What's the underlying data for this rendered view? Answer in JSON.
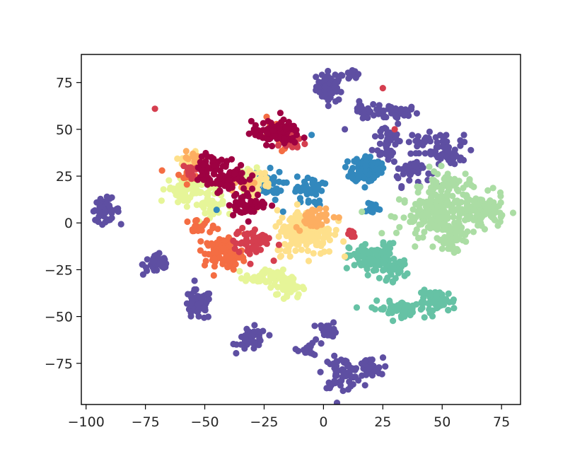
{
  "chart_data": {
    "type": "scatter",
    "title": "",
    "xlabel": "",
    "ylabel": "",
    "xlim": [
      -102,
      83
    ],
    "ylim": [
      -97,
      90
    ],
    "grid": false,
    "legend": "none",
    "x_ticks": [
      -100,
      -75,
      -50,
      -25,
      0,
      25,
      50,
      75
    ],
    "x_tick_labels": [
      "−100",
      "−75",
      "−50",
      "−25",
      "0",
      "25",
      "50",
      "75"
    ],
    "y_ticks": [
      75,
      50,
      25,
      0,
      -25,
      -50,
      -75
    ],
    "y_tick_labels": [
      "75",
      "50",
      "25",
      "0",
      "−25",
      "−50",
      "−75"
    ],
    "palette": [
      "#9e0142",
      "#d53e4f",
      "#f46d43",
      "#fdae61",
      "#fee08b",
      "#e6f598",
      "#abdda4",
      "#66c2a5",
      "#3288bd",
      "#5e4fa2"
    ],
    "clusters": [
      {
        "color": "#5e4fa2",
        "cx": 3,
        "cy": 73,
        "sx": 3,
        "sy": 4,
        "n": 60
      },
      {
        "color": "#5e4fa2",
        "cx": 12,
        "cy": 79,
        "sx": 1.5,
        "sy": 1.5,
        "n": 12
      },
      {
        "color": "#5e4fa2",
        "cx": 16,
        "cy": 60,
        "sx": 1.5,
        "sy": 2,
        "n": 10
      },
      {
        "color": "#5e4fa2",
        "cx": 28,
        "cy": 59,
        "sx": 6,
        "sy": 2,
        "n": 50
      },
      {
        "color": "#5e4fa2",
        "cx": 27,
        "cy": 44,
        "sx": 3,
        "sy": 6,
        "n": 40
      },
      {
        "color": "#5e4fa2",
        "cx": 37,
        "cy": 28,
        "sx": 4,
        "sy": 4,
        "n": 40
      },
      {
        "color": "#5e4fa2",
        "cx": 51,
        "cy": 40,
        "sx": 4,
        "sy": 4,
        "n": 45
      },
      {
        "color": "#5e4fa2",
        "cx": 42,
        "cy": 44,
        "sx": 3,
        "sy": 2,
        "n": 15
      },
      {
        "color": "#5e4fa2",
        "cx": 55,
        "cy": 34,
        "sx": 3,
        "sy": 2,
        "n": 10
      },
      {
        "color": "#5e4fa2",
        "cx": -92,
        "cy": 7,
        "sx": 3,
        "sy": 3,
        "n": 40
      },
      {
        "color": "#5e4fa2",
        "cx": -70,
        "cy": -22,
        "sx": 3,
        "sy": 3,
        "n": 40
      },
      {
        "color": "#5e4fa2",
        "cx": -53,
        "cy": -44,
        "sx": 3,
        "sy": 4,
        "n": 55
      },
      {
        "color": "#5e4fa2",
        "cx": -30,
        "cy": -62,
        "sx": 3,
        "sy": 3,
        "n": 45
      },
      {
        "color": "#5e4fa2",
        "cx": 2,
        "cy": -57,
        "sx": 2,
        "sy": 2,
        "n": 20
      },
      {
        "color": "#5e4fa2",
        "cx": -5,
        "cy": -67,
        "sx": 3,
        "sy": 2,
        "n": 15
      },
      {
        "color": "#5e4fa2",
        "cx": 8,
        "cy": -80,
        "sx": 4,
        "sy": 4,
        "n": 65
      },
      {
        "color": "#5e4fa2",
        "cx": 19,
        "cy": -78,
        "sx": 3,
        "sy": 3,
        "n": 35
      },
      {
        "color": "#3288bd",
        "cx": 18,
        "cy": 29,
        "sx": 3,
        "sy": 3.5,
        "n": 130
      },
      {
        "color": "#3288bd",
        "cx": 20,
        "cy": 8,
        "sx": 2,
        "sy": 2,
        "n": 12
      },
      {
        "color": "#3288bd",
        "cx": -25,
        "cy": 20,
        "sx": 4,
        "sy": 4,
        "n": 40
      },
      {
        "color": "#3288bd",
        "cx": -6,
        "cy": 17,
        "sx": 3,
        "sy": 4,
        "n": 40
      },
      {
        "color": "#66c2a5",
        "cx": 21,
        "cy": -19,
        "sx": 5,
        "sy": 4,
        "n": 110
      },
      {
        "color": "#66c2a5",
        "cx": 31,
        "cy": -25,
        "sx": 3,
        "sy": 3,
        "n": 25
      },
      {
        "color": "#66c2a5",
        "cx": 32,
        "cy": -46,
        "sx": 6,
        "sy": 2,
        "n": 60
      },
      {
        "color": "#66c2a5",
        "cx": 48,
        "cy": -42,
        "sx": 4,
        "sy": 3,
        "n": 55
      },
      {
        "color": "#abdda4",
        "cx": 50,
        "cy": 5,
        "sx": 9,
        "sy": 6,
        "n": 200
      },
      {
        "color": "#abdda4",
        "cx": 68,
        "cy": 7,
        "sx": 4,
        "sy": 4,
        "n": 70
      },
      {
        "color": "#abdda4",
        "cx": 52,
        "cy": 20,
        "sx": 5,
        "sy": 4,
        "n": 50
      },
      {
        "color": "#abdda4",
        "cx": 54,
        "cy": -8,
        "sx": 3,
        "sy": 4,
        "n": 40
      },
      {
        "color": "#e6f598",
        "cx": -58,
        "cy": 18,
        "sx": 4,
        "sy": 4,
        "n": 70
      },
      {
        "color": "#e6f598",
        "cx": -48,
        "cy": 10,
        "sx": 3,
        "sy": 5,
        "n": 40
      },
      {
        "color": "#e6f598",
        "cx": -25,
        "cy": -29,
        "sx": 4,
        "sy": 2,
        "n": 45
      },
      {
        "color": "#e6f598",
        "cx": -15,
        "cy": -34,
        "sx": 3,
        "sy": 3,
        "n": 50
      },
      {
        "color": "#e6f598",
        "cx": -32,
        "cy": 24,
        "sx": 4,
        "sy": 3,
        "n": 30
      },
      {
        "color": "#fee08b",
        "cx": -55,
        "cy": 33,
        "sx": 2.5,
        "sy": 2.5,
        "n": 30
      },
      {
        "color": "#fee08b",
        "cx": -8,
        "cy": -5,
        "sx": 6,
        "sy": 6,
        "n": 180
      },
      {
        "color": "#fee08b",
        "cx": -28,
        "cy": 22,
        "sx": 3,
        "sy": 3,
        "n": 30
      },
      {
        "color": "#fdae61",
        "cx": -55,
        "cy": 34,
        "sx": 2,
        "sy": 2,
        "n": 15
      },
      {
        "color": "#fdae61",
        "cx": -4,
        "cy": 3,
        "sx": 4,
        "sy": 3,
        "n": 40
      },
      {
        "color": "#fdae61",
        "cx": -33,
        "cy": 20,
        "sx": 2,
        "sy": 2,
        "n": 15
      },
      {
        "color": "#f46d43",
        "cx": -42,
        "cy": -16,
        "sx": 4,
        "sy": 4,
        "n": 100
      },
      {
        "color": "#f46d43",
        "cx": -52,
        "cy": -2,
        "sx": 3,
        "sy": 2,
        "n": 20
      },
      {
        "color": "#f46d43",
        "cx": -58,
        "cy": 25,
        "sx": 2,
        "sy": 2,
        "n": 12
      },
      {
        "color": "#f46d43",
        "cx": -18,
        "cy": 46,
        "sx": 3,
        "sy": 3,
        "n": 25
      },
      {
        "color": "#d53e4f",
        "cx": -30,
        "cy": -10,
        "sx": 4,
        "sy": 4,
        "n": 55
      },
      {
        "color": "#d53e4f",
        "cx": -56,
        "cy": 28,
        "sx": 3,
        "sy": 2,
        "n": 20
      },
      {
        "color": "#d53e4f",
        "cx": 11,
        "cy": -6,
        "sx": 1.5,
        "sy": 1.5,
        "n": 10
      },
      {
        "color": "#d53e4f",
        "cx": -13,
        "cy": 44,
        "sx": 3,
        "sy": 3,
        "n": 20
      },
      {
        "color": "#9e0142",
        "cx": -20,
        "cy": 48,
        "sx": 5,
        "sy": 3,
        "n": 100
      },
      {
        "color": "#9e0142",
        "cx": -42,
        "cy": 25,
        "sx": 5,
        "sy": 4,
        "n": 90
      },
      {
        "color": "#9e0142",
        "cx": -32,
        "cy": 10,
        "sx": 4,
        "sy": 3,
        "n": 55
      },
      {
        "color": "#9e0142",
        "cx": -48,
        "cy": 33,
        "sx": 3,
        "sy": 2,
        "n": 20
      }
    ],
    "outliers": [
      {
        "x": -71,
        "y": 61,
        "color": "#d53e4f"
      },
      {
        "x": 30,
        "y": 50,
        "color": "#d53e4f"
      },
      {
        "x": 25,
        "y": 72,
        "color": "#d53e4f"
      },
      {
        "x": -5,
        "y": 47,
        "color": "#3288bd"
      },
      {
        "x": 9,
        "y": 50,
        "color": "#5e4fa2"
      },
      {
        "x": -45,
        "y": 7,
        "color": "#3288bd"
      },
      {
        "x": -17,
        "y": 6,
        "color": "#3288bd"
      },
      {
        "x": 30,
        "y": 3,
        "color": "#abdda4"
      },
      {
        "x": -68,
        "y": 28,
        "color": "#f46d43"
      }
    ]
  }
}
